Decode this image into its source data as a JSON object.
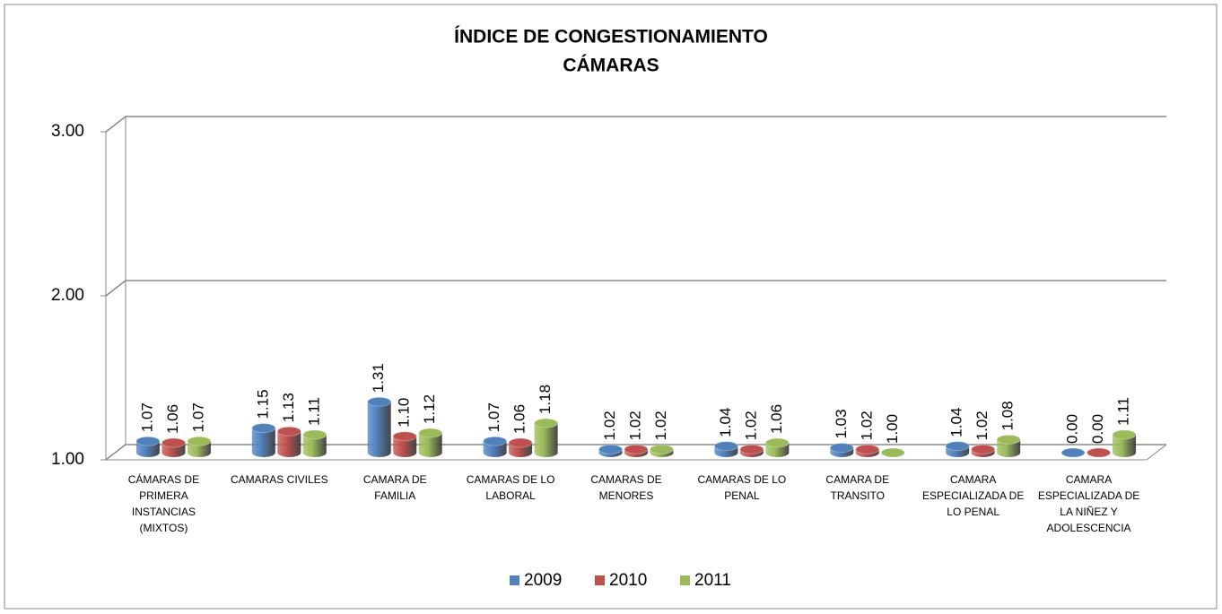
{
  "chart_data": {
    "type": "bar3d",
    "title": [
      "ÍNDICE DE CONGESTIONAMIENTO",
      "CÁMARAS"
    ],
    "categories": [
      "CÁMARAS DE PRIMERA INSTANCIAS (MIXTOS)",
      "CAMARAS CIVILES",
      "CAMARA DE FAMILIA",
      "CAMARAS DE LO LABORAL",
      "CAMARAS DE MENORES",
      "CAMARAS DE LO PENAL",
      "CAMARA DE TRANSITO",
      "CAMARA ESPECIALIZADA DE LO PENAL",
      "CAMARA ESPECIALIZADA DE LA NIÑEZ Y ADOLESCENCIA"
    ],
    "series": [
      {
        "name": "2009",
        "color": "#4f81bd",
        "values": [
          1.07,
          1.15,
          1.31,
          1.07,
          1.02,
          1.04,
          1.03,
          1.04,
          0
        ],
        "value_labels": [
          "1.07",
          "1.15",
          "1.31",
          "1.07",
          "1.02",
          "1.04",
          "1.03",
          "1.04",
          "0.00"
        ]
      },
      {
        "name": "2010",
        "color": "#c0504d",
        "values": [
          1.06,
          1.13,
          1.1,
          1.06,
          1.02,
          1.02,
          1.02,
          1.02,
          0
        ],
        "value_labels": [
          "1.06",
          "1.13",
          "1.10",
          "1.06",
          "1.02",
          "1.02",
          "1.02",
          "1.02",
          "0.00"
        ]
      },
      {
        "name": "2011",
        "color": "#9bbb59",
        "values": [
          1.07,
          1.11,
          1.12,
          1.18,
          1.02,
          1.06,
          1,
          1.08,
          1.11
        ],
        "value_labels": [
          "1.07",
          "1.11",
          "1.12",
          "1.18",
          "1.02",
          "1.06",
          "1.00",
          "1.08",
          "1.11"
        ]
      }
    ],
    "ylim": [
      1,
      3
    ],
    "yticks": [
      {
        "value": 1,
        "label": "1.00"
      },
      {
        "value": 2,
        "label": "2.00"
      },
      {
        "value": 3,
        "label": "3.00"
      }
    ],
    "grid": true,
    "legend": "bottom"
  }
}
